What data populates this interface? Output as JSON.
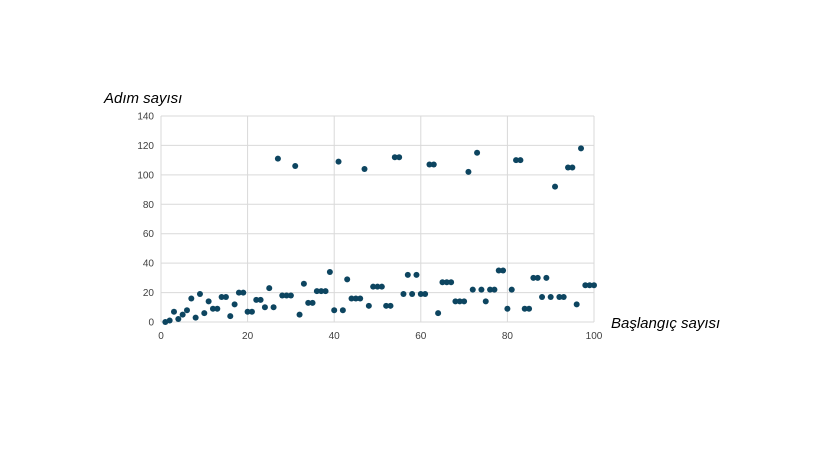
{
  "chart_data": {
    "type": "scatter",
    "title": "",
    "xlabel": "Başlangıç sayısı",
    "ylabel": "Adım sayısı",
    "xlim": [
      0,
      100
    ],
    "ylim": [
      0,
      140
    ],
    "x_ticks": [
      0,
      20,
      40,
      60,
      80,
      100
    ],
    "y_ticks": [
      0,
      20,
      40,
      60,
      80,
      100,
      120,
      140
    ],
    "grid": true,
    "legend": "none",
    "colors": {
      "marker": "#0d4560",
      "grid": "#d9d9d9",
      "tick_text": "#404040"
    },
    "series": [
      {
        "name": "",
        "points": [
          [
            1,
            0
          ],
          [
            2,
            1
          ],
          [
            3,
            7
          ],
          [
            4,
            2
          ],
          [
            5,
            5
          ],
          [
            6,
            8
          ],
          [
            7,
            16
          ],
          [
            8,
            3
          ],
          [
            9,
            19
          ],
          [
            10,
            6
          ],
          [
            11,
            14
          ],
          [
            12,
            9
          ],
          [
            13,
            9
          ],
          [
            14,
            17
          ],
          [
            15,
            17
          ],
          [
            16,
            4
          ],
          [
            17,
            12
          ],
          [
            18,
            20
          ],
          [
            19,
            20
          ],
          [
            20,
            7
          ],
          [
            21,
            7
          ],
          [
            22,
            15
          ],
          [
            23,
            15
          ],
          [
            24,
            10
          ],
          [
            25,
            23
          ],
          [
            26,
            10
          ],
          [
            27,
            111
          ],
          [
            28,
            18
          ],
          [
            29,
            18
          ],
          [
            30,
            18
          ],
          [
            31,
            106
          ],
          [
            32,
            5
          ],
          [
            33,
            26
          ],
          [
            34,
            13
          ],
          [
            35,
            13
          ],
          [
            36,
            21
          ],
          [
            37,
            21
          ],
          [
            38,
            21
          ],
          [
            39,
            34
          ],
          [
            40,
            8
          ],
          [
            41,
            109
          ],
          [
            42,
            8
          ],
          [
            43,
            29
          ],
          [
            44,
            16
          ],
          [
            45,
            16
          ],
          [
            46,
            16
          ],
          [
            47,
            104
          ],
          [
            48,
            11
          ],
          [
            49,
            24
          ],
          [
            50,
            24
          ],
          [
            51,
            24
          ],
          [
            52,
            11
          ],
          [
            53,
            11
          ],
          [
            54,
            112
          ],
          [
            55,
            112
          ],
          [
            56,
            19
          ],
          [
            57,
            32
          ],
          [
            58,
            19
          ],
          [
            59,
            32
          ],
          [
            60,
            19
          ],
          [
            61,
            19
          ],
          [
            62,
            107
          ],
          [
            63,
            107
          ],
          [
            64,
            6
          ],
          [
            65,
            27
          ],
          [
            66,
            27
          ],
          [
            67,
            27
          ],
          [
            68,
            14
          ],
          [
            69,
            14
          ],
          [
            70,
            14
          ],
          [
            71,
            102
          ],
          [
            72,
            22
          ],
          [
            73,
            115
          ],
          [
            74,
            22
          ],
          [
            75,
            14
          ],
          [
            76,
            22
          ],
          [
            77,
            22
          ],
          [
            78,
            35
          ],
          [
            79,
            35
          ],
          [
            80,
            9
          ],
          [
            81,
            22
          ],
          [
            82,
            110
          ],
          [
            83,
            110
          ],
          [
            84,
            9
          ],
          [
            85,
            9
          ],
          [
            86,
            30
          ],
          [
            87,
            30
          ],
          [
            88,
            17
          ],
          [
            89,
            30
          ],
          [
            90,
            17
          ],
          [
            91,
            92
          ],
          [
            92,
            17
          ],
          [
            93,
            17
          ],
          [
            94,
            105
          ],
          [
            95,
            105
          ],
          [
            96,
            12
          ],
          [
            97,
            118
          ],
          [
            98,
            25
          ],
          [
            99,
            25
          ],
          [
            100,
            25
          ]
        ]
      }
    ]
  }
}
